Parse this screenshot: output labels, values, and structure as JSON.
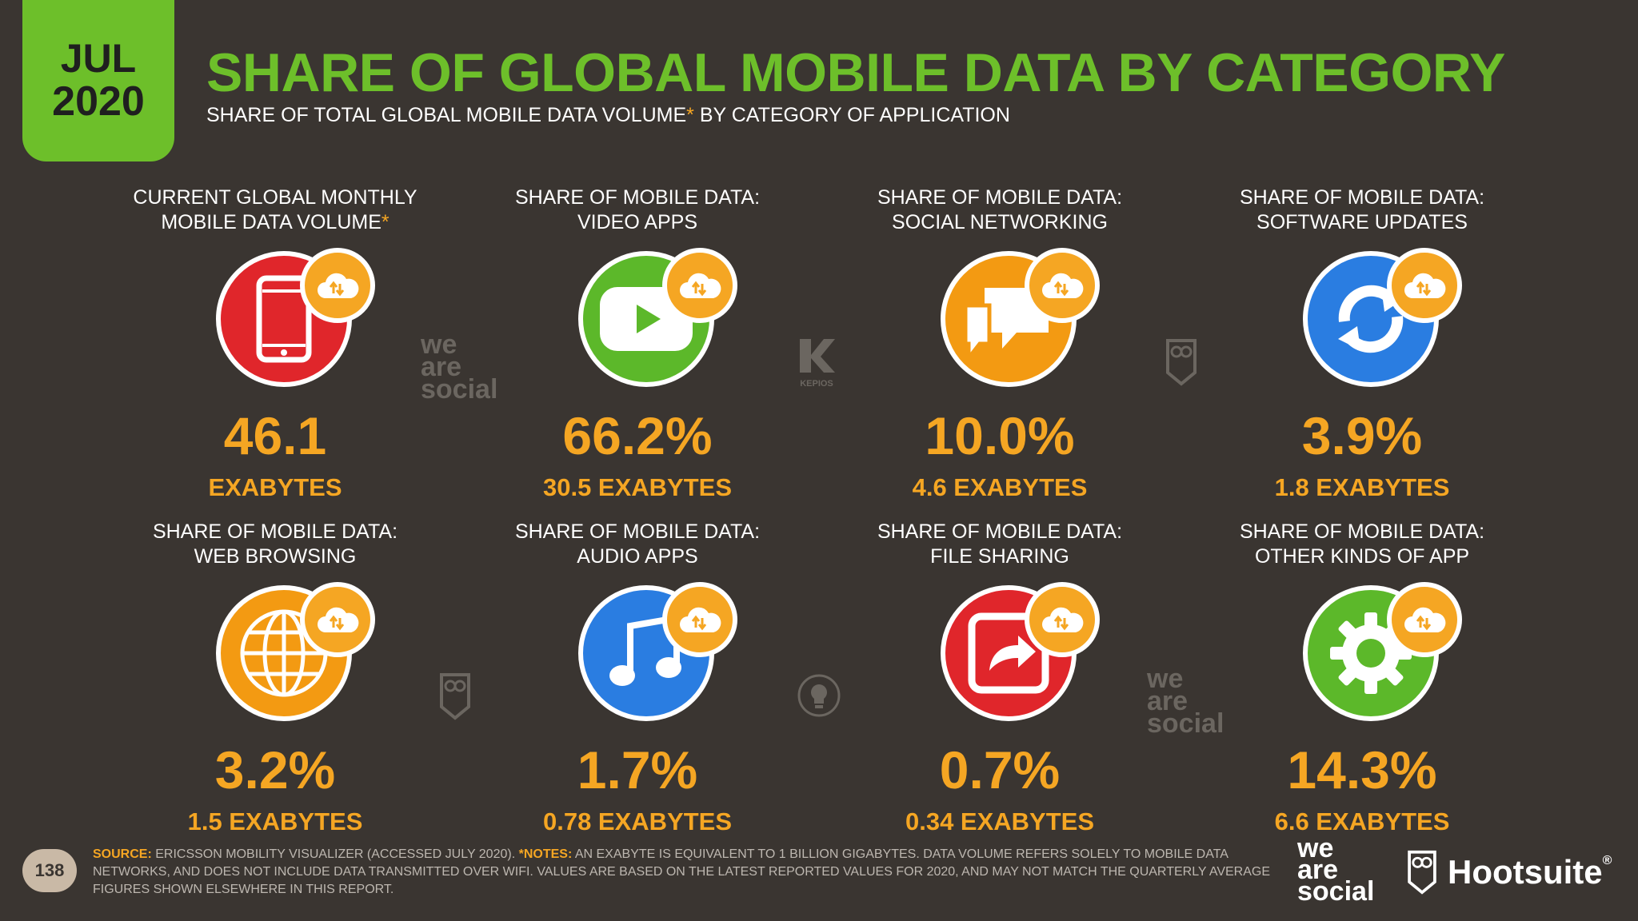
{
  "header": {
    "date_month": "JUL",
    "date_year": "2020",
    "title": "SHARE OF GLOBAL MOBILE DATA BY CATEGORY",
    "subtitle_pre": "SHARE OF TOTAL GLOBAL MOBILE DATA VOLUME",
    "subtitle_asterisk": "*",
    "subtitle_post": " BY CATEGORY OF APPLICATION"
  },
  "cards": [
    {
      "label1": "CURRENT GLOBAL MONTHLY",
      "label2": "MOBILE DATA VOLUME",
      "label_asterisk": "*",
      "value": "46.1",
      "sub": "EXABYTES",
      "icon": "mobile-phone-icon",
      "color": "#e0262b"
    },
    {
      "label1": "SHARE OF MOBILE DATA:",
      "label2": "VIDEO APPS",
      "value": "66.2%",
      "sub": "30.5 EXABYTES",
      "icon": "video-play-icon",
      "color": "#5cb82a"
    },
    {
      "label1": "SHARE OF MOBILE DATA:",
      "label2": "SOCIAL NETWORKING",
      "value": "10.0%",
      "sub": "4.6 EXABYTES",
      "icon": "chat-bubbles-icon",
      "color": "#f39a12"
    },
    {
      "label1": "SHARE OF MOBILE DATA:",
      "label2": "SOFTWARE UPDATES",
      "value": "3.9%",
      "sub": "1.8 EXABYTES",
      "icon": "refresh-icon",
      "color": "#2a7de1"
    },
    {
      "label1": "SHARE OF MOBILE DATA:",
      "label2": "WEB BROWSING",
      "value": "3.2%",
      "sub": "1.5 EXABYTES",
      "icon": "globe-icon",
      "color": "#f39a12"
    },
    {
      "label1": "SHARE OF MOBILE DATA:",
      "label2": "AUDIO APPS",
      "value": "1.7%",
      "sub": "0.78 EXABYTES",
      "icon": "music-note-icon",
      "color": "#2a7de1"
    },
    {
      "label1": "SHARE OF MOBILE DATA:",
      "label2": "FILE SHARING",
      "value": "0.7%",
      "sub": "0.34 EXABYTES",
      "icon": "share-arrow-icon",
      "color": "#e0262b"
    },
    {
      "label1": "SHARE OF MOBILE DATA:",
      "label2": "OTHER KINDS OF APP",
      "value": "14.3%",
      "sub": "6.6 EXABYTES",
      "icon": "gear-icon",
      "color": "#5cb82a"
    }
  ],
  "watermarks": {
    "we_are_social_1": "we",
    "we_are_social_2": "are",
    "we_are_social_3": "social",
    "kepios": "KEPIOS"
  },
  "footer": {
    "page_number": "138",
    "source_label": "SOURCE:",
    "source_text": " ERICSSON MOBILITY VISUALIZER (ACCESSED JULY 2020). ",
    "notes_label": "*NOTES:",
    "notes_text": " AN EXABYTE IS EQUIVALENT TO 1 BILLION GIGABYTES. DATA VOLUME REFERS SOLELY TO MOBILE DATA NETWORKS, AND DOES NOT INCLUDE DATA TRANSMITTED OVER WIFI. VALUES ARE BASED ON THE LATEST REPORTED VALUES FOR 2020, AND MAY NOT MATCH THE QUARTERLY AVERAGE FIGURES SHOWN ELSEWHERE IN THIS REPORT."
  },
  "brands": {
    "was_1": "we",
    "was_2": "are",
    "was_3": "social",
    "hootsuite": "Hootsuite",
    "hootsuite_reg": "®"
  }
}
